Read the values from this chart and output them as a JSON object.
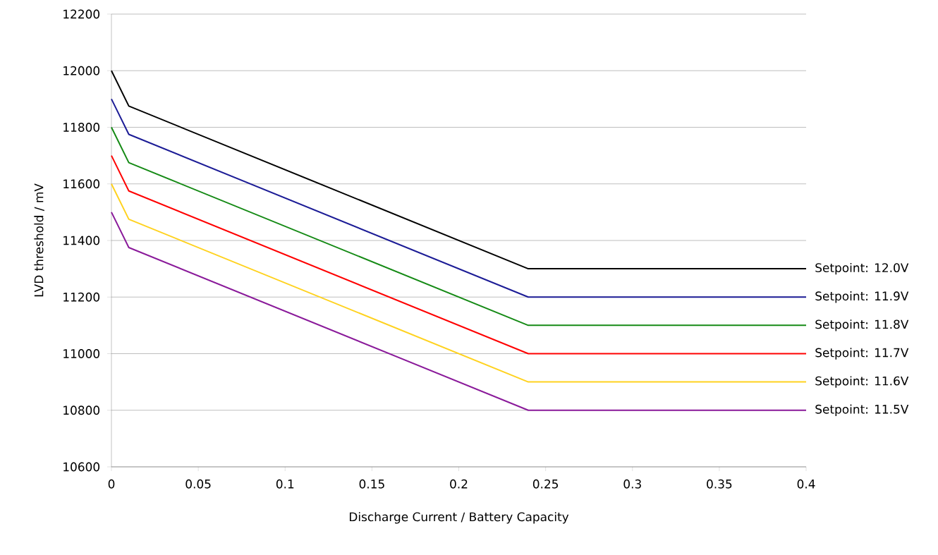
{
  "chart_data": {
    "type": "line",
    "xlabel": "Discharge Current / Battery Capacity",
    "ylabel": "LVD threshold / mV",
    "x": [
      0,
      0.01,
      0.24,
      0.4
    ],
    "series": [
      {
        "name": "Setpoint: 12.0V",
        "color": "#000000",
        "values": [
          12000,
          11875,
          11300,
          11300
        ]
      },
      {
        "name": "Setpoint: 11.9V",
        "color": "#1c1c96",
        "values": [
          11900,
          11775,
          11200,
          11200
        ]
      },
      {
        "name": "Setpoint: 11.8V",
        "color": "#158a15",
        "values": [
          11800,
          11675,
          11100,
          11100
        ]
      },
      {
        "name": "Setpoint: 11.7V",
        "color": "#ff0000",
        "values": [
          11700,
          11575,
          11000,
          11000
        ]
      },
      {
        "name": "Setpoint: 11.6V",
        "color": "#ffd21f",
        "values": [
          11600,
          11475,
          10900,
          10900
        ]
      },
      {
        "name": "Setpoint: 11.5V",
        "color": "#8a1a9a",
        "values": [
          11500,
          11375,
          10800,
          10800
        ]
      }
    ],
    "xlim": [
      0,
      0.4
    ],
    "xticks": [
      0,
      0.05,
      0.1,
      0.15,
      0.2,
      0.25,
      0.3,
      0.35,
      0.4
    ],
    "ylim": [
      10600,
      12200
    ],
    "yticks": [
      10600,
      10800,
      11000,
      11200,
      11400,
      11600,
      11800,
      12000,
      12200
    ],
    "grid": "y",
    "line_style": "solid",
    "legend": false
  }
}
